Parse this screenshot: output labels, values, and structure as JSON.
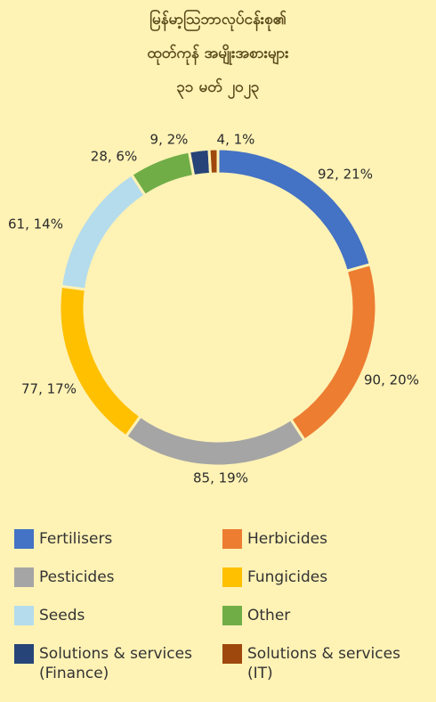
{
  "chart_data": {
    "type": "donut",
    "title": [
      "မြန်မာ့ဩဘာလုပ်ငန်းစု၏",
      "ထုတ်ကုန် အမျိုးအစားများ"
    ],
    "subtitle": "၃၁ မတ် ၂၀၂၃",
    "categories": [
      "Fertilisers",
      "Herbicides",
      "Pesticides",
      "Fungicides",
      "Seeds",
      "Other",
      "Solutions & services (Finance)",
      "Solutions & services (IT)"
    ],
    "values": [
      92,
      90,
      85,
      77,
      61,
      28,
      9,
      4
    ],
    "value_labels": [
      "92, 21%",
      "90, 20%",
      "85, 19%",
      "77, 17%",
      "61, 14%",
      "28, 6%",
      "9, 2%",
      "4, 1%"
    ],
    "colors": [
      "#4472c4",
      "#ed7d31",
      "#a5a5a5",
      "#ffc000",
      "#b4dcec",
      "#70ad47",
      "#264478",
      "#9e480e"
    ],
    "legend": "bottom"
  }
}
